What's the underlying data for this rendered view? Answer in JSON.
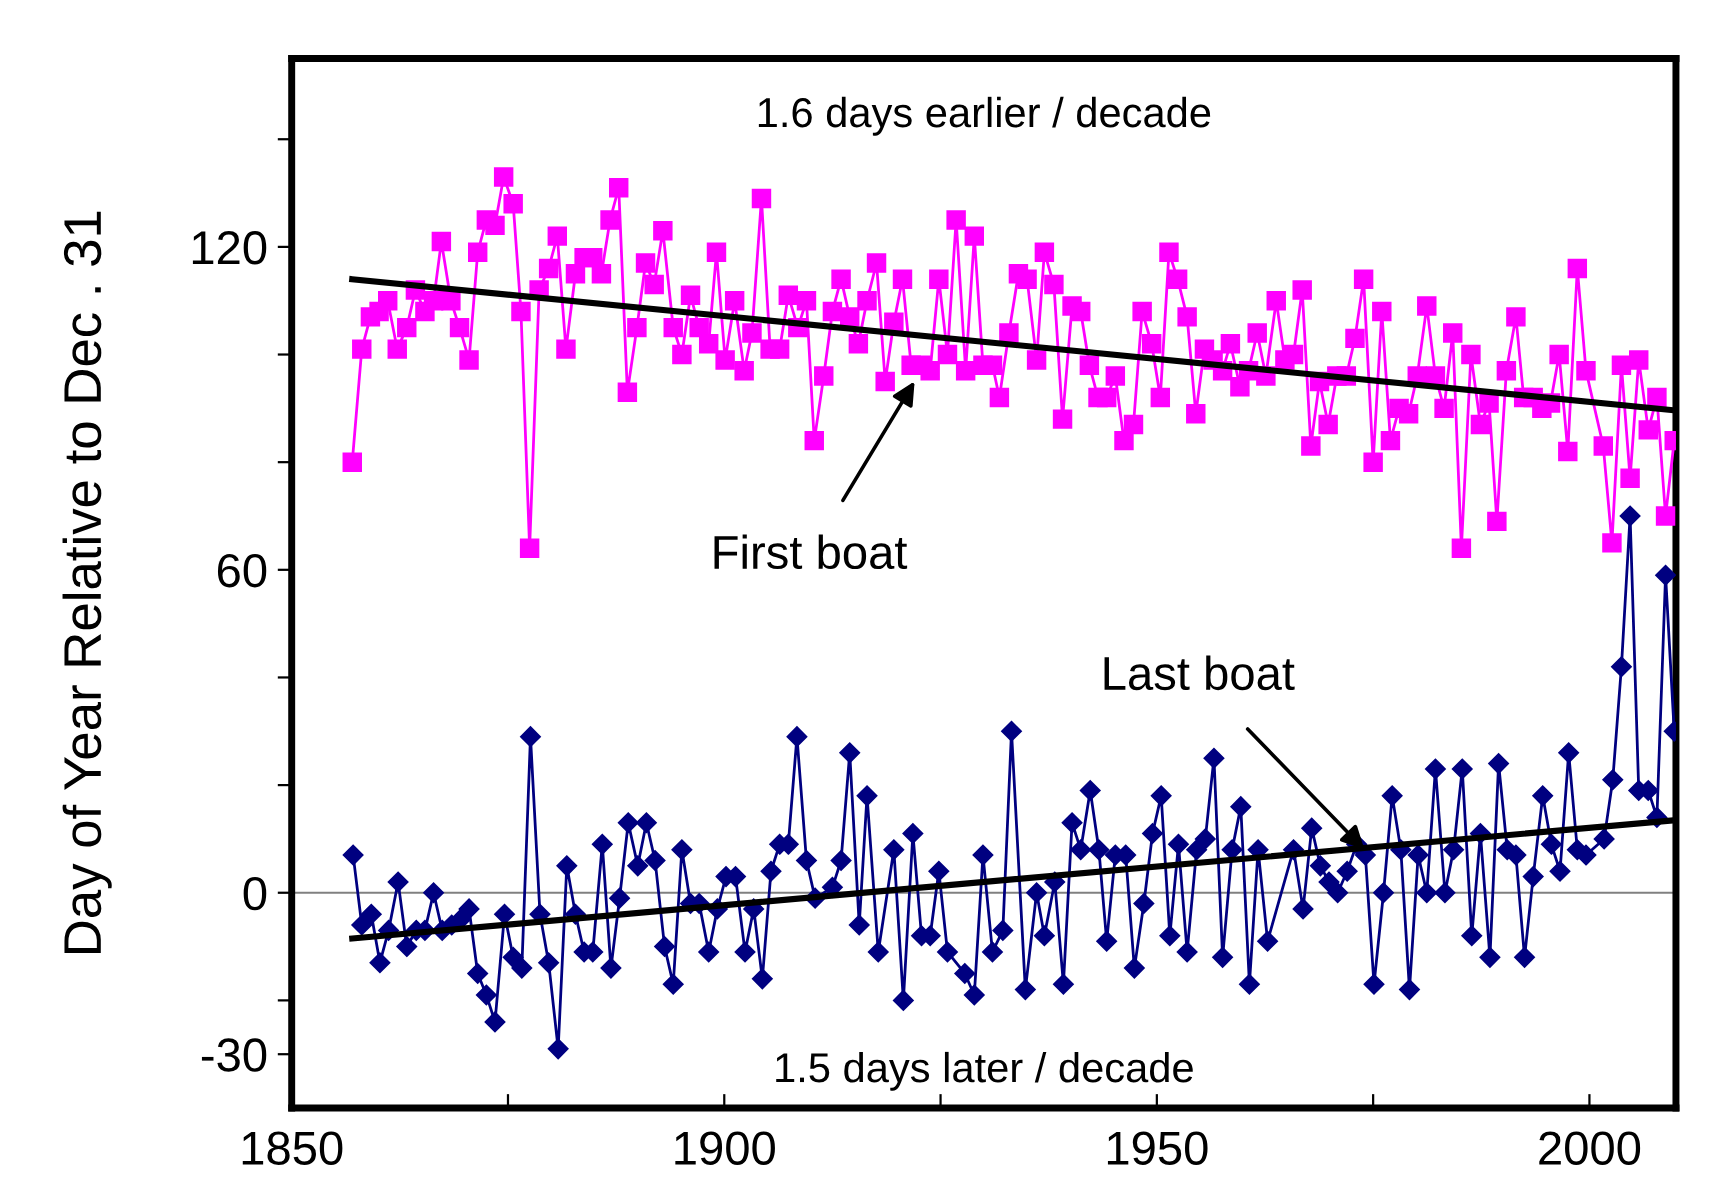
{
  "chart_data": {
    "type": "line",
    "ylabel": "Day of Year Relative to Dec . 31",
    "xlim": [
      1850,
      2010
    ],
    "xticks": [
      1850,
      {
        "value": 1875,
        "label": null
      },
      1900,
      {
        "value": 1925,
        "label": null
      },
      1950,
      {
        "value": 1975,
        "label": null
      },
      2000
    ],
    "ylim": [
      -40,
      155
    ],
    "yticks": [
      -30,
      {
        "value": -20,
        "label": null
      },
      0,
      {
        "value": 20,
        "label": null
      },
      {
        "value": 40,
        "label": null
      },
      60,
      {
        "value": 80,
        "label": null
      },
      {
        "value": 100,
        "label": null
      },
      120,
      {
        "value": 140,
        "label": null
      }
    ],
    "grid": false,
    "legend": false,
    "line_style": "solid",
    "ref_lines": [
      {
        "axis": "y",
        "value": 0,
        "color": "#808080"
      }
    ],
    "annotations": [
      "1.6 days earlier / decade",
      "1.5 days later / decade",
      {
        "text": "First boat",
        "x": 1922,
        "y": 95
      },
      {
        "text": "Last boat",
        "x": 1974,
        "y": 8
      }
    ],
    "series": [
      {
        "color": "#ff00ff",
        "marker": "square",
        "x": [
          1857.0,
          1858.1,
          1859.1,
          1860.1,
          1861.1,
          1862.2,
          1863.3,
          1864.3,
          1865.4,
          1866.4,
          1867.3,
          1868.4,
          1869.4,
          1870.5,
          1871.5,
          1872.5,
          1873.5,
          1874.5,
          1875.6,
          1876.5,
          1877.5,
          1878.6,
          1879.7,
          1880.7,
          1881.7,
          1882.8,
          1883.8,
          1884.8,
          1885.8,
          1886.8,
          1887.8,
          1888.8,
          1889.9,
          1890.9,
          1891.9,
          1892.9,
          1894.1,
          1895.1,
          1896.1,
          1897.1,
          1898.2,
          1899.1,
          1900.1,
          1901.2,
          1902.3,
          1903.2,
          1904.3,
          1905.3,
          1906.4,
          1907.4,
          1908.5,
          1909.5,
          1910.4,
          1911.5,
          1912.5,
          1913.5,
          1914.5,
          1915.5,
          1916.5,
          1917.6,
          1918.6,
          1919.6,
          1920.6,
          1921.6,
          1922.7,
          1923.8,
          1924.8,
          1925.8,
          1926.8,
          1927.9,
          1928.9,
          1929.9,
          1931.0,
          1931.8,
          1932.9,
          1934.0,
          1935.0,
          1936.1,
          1937.0,
          1938.1,
          1939.1,
          1940.2,
          1941.2,
          1942.2,
          1943.2,
          1944.2,
          1945.2,
          1946.2,
          1947.3,
          1948.3,
          1949.4,
          1950.4,
          1951.4,
          1952.4,
          1953.5,
          1954.5,
          1955.5,
          1956.5,
          1957.6,
          1958.5,
          1959.6,
          1960.6,
          1961.6,
          1962.6,
          1963.8,
          1964.8,
          1965.8,
          1966.8,
          1967.8,
          1968.8,
          1969.8,
          1970.8,
          1971.9,
          1972.9,
          1973.9,
          1975.0,
          1976.0,
          1977.0,
          1978.0,
          1979.1,
          1980.1,
          1981.2,
          1982.2,
          1983.2,
          1984.2,
          1985.2,
          1986.3,
          1987.4,
          1988.4,
          1989.3,
          1990.4,
          1991.5,
          1992.4,
          1993.5,
          1994.5,
          1995.5,
          1996.5,
          1997.5,
          1998.6,
          1999.6,
          2001.6,
          2002.6,
          2003.7,
          2004.7,
          2005.7,
          2006.8,
          2007.8,
          2008.8,
          2009.8
        ],
        "values": [
          80,
          101,
          107,
          108,
          110,
          101,
          105,
          112,
          108,
          110,
          121,
          110,
          105,
          99,
          119,
          125,
          124,
          133,
          128,
          108,
          64,
          112,
          116,
          122,
          101,
          115,
          118,
          118,
          115,
          125,
          131,
          93,
          105,
          117,
          113,
          123,
          105,
          100,
          111,
          105,
          102,
          119,
          99,
          110,
          97,
          104,
          129,
          101,
          101,
          111,
          105,
          110,
          84,
          96,
          108,
          114,
          107,
          102,
          110,
          117,
          95,
          106,
          114,
          98,
          98,
          97,
          114,
          100,
          125,
          97,
          122,
          98,
          98,
          92,
          104,
          115,
          114,
          99,
          119,
          113,
          88,
          109,
          108,
          98,
          92,
          92,
          96,
          84,
          87,
          108,
          102,
          92,
          119,
          114,
          107,
          89,
          101,
          99,
          97,
          102,
          94,
          97,
          104,
          96,
          110,
          99,
          100,
          112,
          83,
          95,
          87,
          96,
          96,
          103,
          114,
          80,
          108,
          84,
          90,
          89,
          96,
          109,
          96,
          90,
          104,
          64,
          100,
          87,
          91,
          69,
          97,
          107,
          92,
          92,
          90,
          91,
          100,
          82,
          116,
          97,
          83,
          65,
          98,
          77,
          99,
          86,
          92,
          70,
          84
        ]
      },
      {
        "color": "#000080",
        "marker": "diamond",
        "x": [
          1857.1,
          1858.1,
          1859.2,
          1860.2,
          1861.2,
          1862.3,
          1863.3,
          1864.4,
          1865.4,
          1866.4,
          1867.4,
          1868.5,
          1869.5,
          1870.5,
          1871.5,
          1872.5,
          1873.5,
          1874.6,
          1875.6,
          1876.6,
          1877.6,
          1878.7,
          1879.7,
          1880.8,
          1881.8,
          1882.8,
          1883.8,
          1884.8,
          1885.9,
          1886.9,
          1887.9,
          1888.9,
          1890.0,
          1891.0,
          1892.0,
          1893.1,
          1894.1,
          1895.1,
          1896.1,
          1897.1,
          1898.2,
          1899.2,
          1900.2,
          1901.3,
          1902.4,
          1903.4,
          1904.4,
          1905.4,
          1906.4,
          1907.4,
          1908.4,
          1909.5,
          1910.5,
          1912.5,
          1913.5,
          1914.5,
          1915.6,
          1916.5,
          1917.8,
          1919.6,
          1920.7,
          1921.8,
          1922.8,
          1923.8,
          1924.8,
          1925.8,
          1927.8,
          1928.9,
          1929.9,
          1931.0,
          1932.2,
          1933.2,
          1934.8,
          1936.1,
          1937.0,
          1938.2,
          1939.2,
          1940.2,
          1941.2,
          1942.3,
          1943.3,
          1944.2,
          1945.2,
          1946.4,
          1947.4,
          1948.5,
          1949.5,
          1950.5,
          1951.5,
          1952.5,
          1953.5,
          1954.6,
          1955.6,
          1956.6,
          1957.6,
          1958.7,
          1959.7,
          1960.7,
          1961.7,
          1962.8,
          1965.8,
          1966.9,
          1967.9,
          1968.9,
          1969.9,
          1970.9,
          1972.0,
          1973.1,
          1974.1,
          1975.1,
          1976.2,
          1977.2,
          1978.2,
          1979.2,
          1980.2,
          1981.2,
          1982.2,
          1983.3,
          1984.3,
          1985.3,
          1986.4,
          1987.4,
          1988.5,
          1989.5,
          1990.5,
          1991.5,
          1992.5,
          1993.5,
          1994.6,
          1995.6,
          1996.6,
          1997.6,
          1998.6,
          1999.6,
          2001.7,
          2002.7,
          2003.7,
          2004.7,
          2005.7,
          2006.8,
          2007.8,
          2008.8,
          2009.8
        ],
        "values": [
          7,
          -6,
          -4,
          -13,
          -7,
          2,
          -10,
          -7,
          -7,
          0,
          -7,
          -6,
          -5,
          -3,
          -15,
          -19,
          -24,
          -4,
          -12,
          -14,
          29,
          -4,
          -13,
          -29,
          5,
          -4,
          -11,
          -11,
          9,
          -14,
          -1,
          13,
          5,
          13,
          6,
          -10,
          -17,
          8,
          -2,
          -2,
          -11,
          -3,
          3,
          3,
          -11,
          -3,
          -16,
          4,
          9,
          9,
          29,
          6,
          -1,
          1,
          6,
          26,
          -6,
          18,
          -11,
          8,
          -20,
          11,
          -8,
          -8,
          4,
          -11,
          -15,
          -19,
          7,
          -11,
          -7,
          30,
          -18,
          0,
          -8,
          2,
          -17,
          13,
          8,
          19,
          8,
          -9,
          7,
          7,
          -14,
          -2,
          11,
          18,
          -8,
          9,
          -11,
          8,
          10,
          25,
          -12,
          8,
          16,
          -17,
          8,
          -9,
          8,
          -3,
          12,
          5,
          2,
          0,
          4,
          9,
          7,
          -17,
          0,
          18,
          8,
          -18,
          7,
          0,
          23,
          0,
          8,
          23,
          -8,
          11,
          -12,
          24,
          8,
          7,
          -12,
          3,
          18,
          9,
          4,
          26,
          8,
          7,
          10,
          21,
          42,
          70,
          19,
          19,
          14,
          59,
          30
        ]
      },
      {
        "type": "line",
        "color": "#000000",
        "marker": "none",
        "x": [
          1857,
          2010
        ],
        "values": [
          114,
          89.6
        ]
      },
      {
        "type": "line",
        "color": "#000000",
        "marker": "none",
        "x": [
          1857,
          2010
        ],
        "values": [
          -8.5,
          13.5
        ]
      }
    ]
  }
}
